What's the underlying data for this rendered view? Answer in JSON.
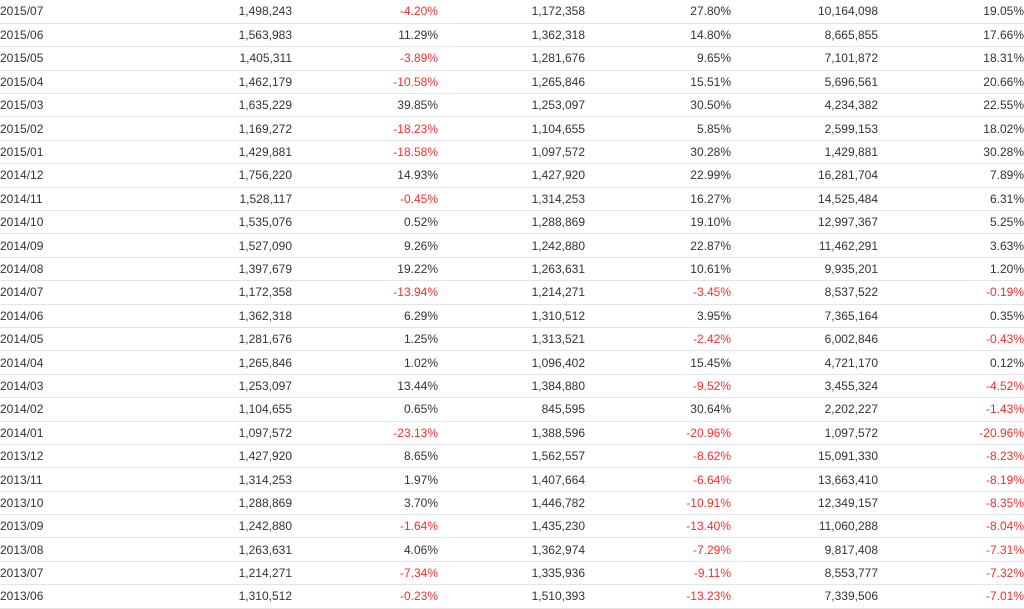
{
  "table": {
    "colors": {
      "negative": "#ff2a2a",
      "positive": "#333333",
      "row_border": "#e4e4e4"
    },
    "rows": [
      [
        "2015/07",
        "1,498,243",
        "-4.20%",
        "1,172,358",
        "27.80%",
        "10,164,098",
        "19.05%"
      ],
      [
        "2015/06",
        "1,563,983",
        "11.29%",
        "1,362,318",
        "14.80%",
        "8,665,855",
        "17.66%"
      ],
      [
        "2015/05",
        "1,405,311",
        "-3.89%",
        "1,281,676",
        "9.65%",
        "7,101,872",
        "18.31%"
      ],
      [
        "2015/04",
        "1,462,179",
        "-10.58%",
        "1,265,846",
        "15.51%",
        "5,696,561",
        "20.66%"
      ],
      [
        "2015/03",
        "1,635,229",
        "39.85%",
        "1,253,097",
        "30.50%",
        "4,234,382",
        "22.55%"
      ],
      [
        "2015/02",
        "1,169,272",
        "-18.23%",
        "1,104,655",
        "5.85%",
        "2,599,153",
        "18.02%"
      ],
      [
        "2015/01",
        "1,429,881",
        "-18.58%",
        "1,097,572",
        "30.28%",
        "1,429,881",
        "30.28%"
      ],
      [
        "2014/12",
        "1,756,220",
        "14.93%",
        "1,427,920",
        "22.99%",
        "16,281,704",
        "7.89%"
      ],
      [
        "2014/11",
        "1,528,117",
        "-0.45%",
        "1,314,253",
        "16.27%",
        "14,525,484",
        "6.31%"
      ],
      [
        "2014/10",
        "1,535,076",
        "0.52%",
        "1,288,869",
        "19.10%",
        "12,997,367",
        "5.25%"
      ],
      [
        "2014/09",
        "1,527,090",
        "9.26%",
        "1,242,880",
        "22.87%",
        "11,462,291",
        "3.63%"
      ],
      [
        "2014/08",
        "1,397,679",
        "19.22%",
        "1,263,631",
        "10.61%",
        "9,935,201",
        "1.20%"
      ],
      [
        "2014/07",
        "1,172,358",
        "-13.94%",
        "1,214,271",
        "-3.45%",
        "8,537,522",
        "-0.19%"
      ],
      [
        "2014/06",
        "1,362,318",
        "6.29%",
        "1,310,512",
        "3.95%",
        "7,365,164",
        "0.35%"
      ],
      [
        "2014/05",
        "1,281,676",
        "1.25%",
        "1,313,521",
        "-2.42%",
        "6,002,846",
        "-0.43%"
      ],
      [
        "2014/04",
        "1,265,846",
        "1.02%",
        "1,096,402",
        "15.45%",
        "4,721,170",
        "0.12%"
      ],
      [
        "2014/03",
        "1,253,097",
        "13.44%",
        "1,384,880",
        "-9.52%",
        "3,455,324",
        "-4.52%"
      ],
      [
        "2014/02",
        "1,104,655",
        "0.65%",
        "845,595",
        "30.64%",
        "2,202,227",
        "-1.43%"
      ],
      [
        "2014/01",
        "1,097,572",
        "-23.13%",
        "1,388,596",
        "-20.96%",
        "1,097,572",
        "-20.96%"
      ],
      [
        "2013/12",
        "1,427,920",
        "8.65%",
        "1,562,557",
        "-8.62%",
        "15,091,330",
        "-8.23%"
      ],
      [
        "2013/11",
        "1,314,253",
        "1.97%",
        "1,407,664",
        "-6.64%",
        "13,663,410",
        "-8.19%"
      ],
      [
        "2013/10",
        "1,288,869",
        "3.70%",
        "1,446,782",
        "-10.91%",
        "12,349,157",
        "-8.35%"
      ],
      [
        "2013/09",
        "1,242,880",
        "-1.64%",
        "1,435,230",
        "-13.40%",
        "11,060,288",
        "-8.04%"
      ],
      [
        "2013/08",
        "1,263,631",
        "4.06%",
        "1,362,974",
        "-7.29%",
        "9,817,408",
        "-7.31%"
      ],
      [
        "2013/07",
        "1,214,271",
        "-7.34%",
        "1,335,936",
        "-9.11%",
        "8,553,777",
        "-7.32%"
      ],
      [
        "2013/06",
        "1,310,512",
        "-0.23%",
        "1,510,393",
        "-13.23%",
        "7,339,506",
        "-7.01%"
      ]
    ]
  }
}
